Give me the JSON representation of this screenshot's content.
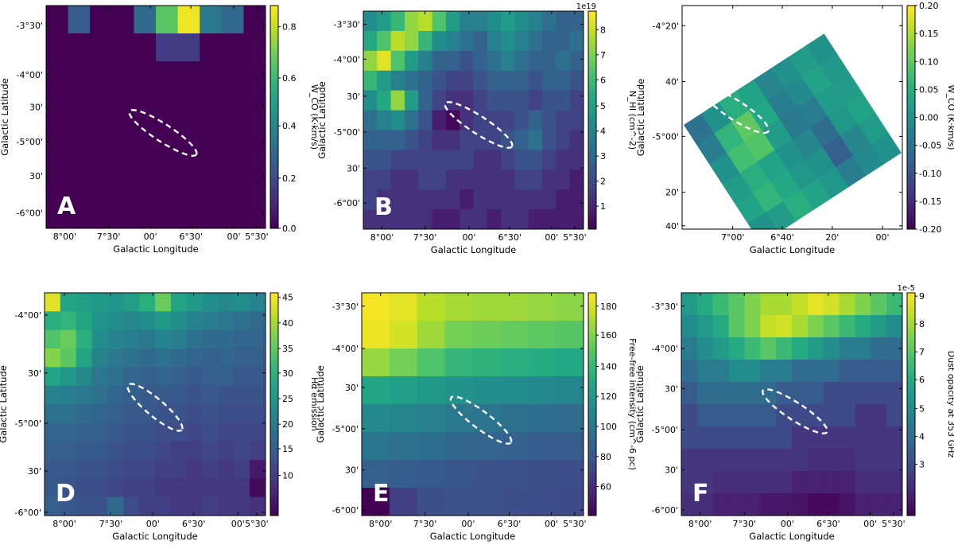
{
  "panels": [
    {
      "id": "A",
      "letter": "A",
      "x_label": "Galactic Longitude",
      "y_label": "Galactic Latitude",
      "x_ticks": [
        "8°00'",
        "7°30'",
        "00'",
        "6°30'",
        "00'",
        "5°30'"
      ],
      "y_ticks": [
        "-3°30'",
        "-4°00'",
        "30'",
        "-5°00'",
        "30'",
        "-6°00'"
      ],
      "colorbar_label": "W_CO (K·km/s)",
      "colorbar_ticks": [
        "0.8",
        "0.6",
        "0.4",
        "0.2",
        "0.0"
      ],
      "colorbar_range": [
        0,
        0.88
      ],
      "colorbar_multiplier": "",
      "colormap": "viridis"
    },
    {
      "id": "B",
      "letter": "B",
      "x_label": "Galactic Longitude",
      "y_label": "Galactic Latitude",
      "x_ticks": [
        "8°00'",
        "7°30'",
        "00'",
        "6°30'",
        "00'",
        "5°30'"
      ],
      "y_ticks": [
        "-3°30'",
        "-4°00'",
        "30'",
        "-5°00'",
        "30'",
        "-6°00'"
      ],
      "colorbar_label": "N_HI (cm^-2)",
      "colorbar_ticks": [
        "8",
        "7",
        "6",
        "5",
        "4",
        "3",
        "2",
        "1"
      ],
      "colorbar_range": [
        0.3,
        8.9
      ],
      "colorbar_multiplier": "1e19",
      "colormap": "viridis"
    },
    {
      "id": "C",
      "letter": "C",
      "x_label": "Galactic Longitude",
      "y_label": "Galactic Latitude",
      "x_ticks": [
        "7°00'",
        "6°40'",
        "20'",
        "00'"
      ],
      "y_ticks": [
        "-4°20'",
        "40'",
        "-5°00'",
        "20'",
        "40'"
      ],
      "colorbar_label": "W_CO (K·km/s)",
      "colorbar_ticks": [
        "0.20",
        "0.15",
        "0.10",
        "0.05",
        "0.00",
        "-0.05",
        "-0.10",
        "-0.15",
        "-0.20"
      ],
      "colorbar_range": [
        -0.2,
        0.2
      ],
      "colorbar_multiplier": "",
      "colormap": "viridis"
    },
    {
      "id": "D",
      "letter": "D",
      "x_label": "Galactic Longitude",
      "y_label": "Galactic Latitude",
      "x_ticks": [
        "8°00'",
        "7°30'",
        "00'",
        "6°30'",
        "00'",
        "5°30'"
      ],
      "y_ticks": [
        "-4°00'",
        "30'",
        "-5°00'",
        "30'",
        "-6°00'"
      ],
      "colorbar_label": "Hα emission",
      "colorbar_ticks": [
        "45",
        "40",
        "35",
        "30",
        "25",
        "20",
        "15",
        "10"
      ],
      "colorbar_range": [
        3,
        46
      ],
      "colorbar_multiplier": "",
      "colormap": "viridis"
    },
    {
      "id": "E",
      "letter": "E",
      "x_label": "Galactic Longitude",
      "y_label": "Galactic Latitude",
      "x_ticks": [
        "8°00'",
        "7°30'",
        "00'",
        "6°30'",
        "00'",
        "5°30'"
      ],
      "y_ticks": [
        "-3°30'",
        "-4°00'",
        "30'",
        "-5°00'",
        "30'",
        "-6°00'"
      ],
      "colorbar_label": "Free-free intensity (cm^-6 pc)",
      "colorbar_ticks": [
        "180",
        "160",
        "140",
        "120",
        "100",
        "80",
        "60"
      ],
      "colorbar_range": [
        42,
        192
      ],
      "colorbar_multiplier": "",
      "colormap": "viridis"
    },
    {
      "id": "F",
      "letter": "F",
      "x_label": "Galactic Longitude",
      "y_label": "Galactic Latitude",
      "x_ticks": [
        "8°00'",
        "7°30'",
        "00'",
        "6°30'",
        "00'",
        "5°30'"
      ],
      "y_ticks": [
        "-3°30'",
        "-4°00'",
        "30'",
        "-5°00'",
        "30'",
        "-6°00'"
      ],
      "colorbar_label": "Dust opacity at 353 GHz",
      "colorbar_ticks": [
        "9",
        "8",
        "7",
        "6",
        "5",
        "4",
        "3"
      ],
      "colorbar_range": [
        1.8,
        9.5
      ],
      "colorbar_multiplier": "1e-5",
      "colormap": "viridis"
    }
  ],
  "chart_data": [
    {
      "type": "heatmap",
      "panel": "A",
      "xlabel": "Galactic Longitude",
      "ylabel": "Galactic Latitude",
      "colorbar_label": "W_CO (K·km/s)",
      "value_range": [
        0,
        0.88
      ],
      "grid": [
        [
          0.0,
          0.25,
          0.0,
          0.0,
          0.3,
          0.65,
          0.86,
          0.35,
          0.3,
          0.0
        ],
        [
          0.0,
          0.0,
          0.0,
          0.0,
          0.0,
          0.15,
          0.15,
          0.0,
          0.0,
          0.0
        ],
        [
          0.0,
          0.0,
          0.0,
          0.0,
          0.0,
          0.0,
          0.0,
          0.0,
          0.0,
          0.0
        ],
        [
          0.0,
          0.0,
          0.0,
          0.0,
          0.0,
          0.0,
          0.0,
          0.0,
          0.0,
          0.0
        ],
        [
          0.0,
          0.0,
          0.0,
          0.0,
          0.0,
          0.0,
          0.0,
          0.0,
          0.0,
          0.0
        ],
        [
          0.0,
          0.0,
          0.0,
          0.0,
          0.0,
          0.0,
          0.0,
          0.0,
          0.0,
          0.0
        ],
        [
          0.0,
          0.0,
          0.0,
          0.0,
          0.0,
          0.0,
          0.0,
          0.0,
          0.0,
          0.0
        ],
        [
          0.0,
          0.0,
          0.0,
          0.0,
          0.0,
          0.0,
          0.0,
          0.0,
          0.0,
          0.0
        ]
      ]
    },
    {
      "type": "heatmap",
      "panel": "B",
      "xlabel": "Galactic Longitude",
      "ylabel": "Galactic Latitude",
      "colorbar_label": "N_HI (cm^-2)",
      "colorbar_multiplier": "1e19",
      "value_range": [
        0.3,
        8.9
      ],
      "grid": [
        [
          4.5,
          5.0,
          6.0,
          7.5,
          8.0,
          6.5,
          5.0,
          4.0,
          4.0,
          4.5,
          5.0,
          4.5,
          4.0,
          3.5,
          3.0,
          3.0
        ],
        [
          5.5,
          6.5,
          8.0,
          7.5,
          6.0,
          4.5,
          4.0,
          3.5,
          3.0,
          4.0,
          4.5,
          4.0,
          3.5,
          3.0,
          3.0,
          3.5
        ],
        [
          7.5,
          8.5,
          6.5,
          5.0,
          4.0,
          3.0,
          3.0,
          2.5,
          3.0,
          3.5,
          4.0,
          3.5,
          3.0,
          3.0,
          3.5,
          3.0
        ],
        [
          6.0,
          5.0,
          4.0,
          3.5,
          3.0,
          2.5,
          2.0,
          2.0,
          2.5,
          3.0,
          3.0,
          3.0,
          2.5,
          3.0,
          3.0,
          2.5
        ],
        [
          4.5,
          5.5,
          7.5,
          5.0,
          3.0,
          2.0,
          1.5,
          1.5,
          2.0,
          2.5,
          2.5,
          2.5,
          2.0,
          2.5,
          2.5,
          2.0
        ],
        [
          3.5,
          4.0,
          4.5,
          3.5,
          2.5,
          1.0,
          0.5,
          1.5,
          2.0,
          2.0,
          2.0,
          2.5,
          3.0,
          2.5,
          2.0,
          2.0
        ],
        [
          3.0,
          3.0,
          3.0,
          2.5,
          2.0,
          1.5,
          1.5,
          2.0,
          2.0,
          2.0,
          2.5,
          3.0,
          3.5,
          2.5,
          2.0,
          1.5
        ],
        [
          2.5,
          2.5,
          2.0,
          2.0,
          2.0,
          2.0,
          2.0,
          2.0,
          1.5,
          1.5,
          2.0,
          2.5,
          2.5,
          2.0,
          1.5,
          1.5
        ],
        [
          2.0,
          2.0,
          1.5,
          1.5,
          2.0,
          2.0,
          1.5,
          1.5,
          1.5,
          1.5,
          1.5,
          2.0,
          2.0,
          1.5,
          1.5,
          1.0
        ],
        [
          2.0,
          1.5,
          1.5,
          1.5,
          1.5,
          1.5,
          1.5,
          1.0,
          1.5,
          1.5,
          1.5,
          1.5,
          1.5,
          1.5,
          1.0,
          1.0
        ],
        [
          1.5,
          1.5,
          1.5,
          1.5,
          1.5,
          1.0,
          1.0,
          1.5,
          1.5,
          1.0,
          1.5,
          1.5,
          1.0,
          1.0,
          1.0,
          1.0
        ]
      ]
    },
    {
      "type": "heatmap",
      "panel": "C",
      "xlabel": "Galactic Longitude",
      "ylabel": "Galactic Latitude",
      "colorbar_label": "W_CO (K·km/s)",
      "value_range": [
        -0.2,
        0.2
      ],
      "note_values": "rotated rectangular footprint; values mostly between -0.10 and 0.10",
      "grid": [
        [
          -0.05,
          0.0,
          0.05,
          0.03,
          -0.02,
          0.0,
          0.02,
          0.0
        ],
        [
          -0.03,
          0.06,
          0.1,
          0.04,
          -0.03,
          -0.01,
          0.03,
          0.01
        ],
        [
          0.0,
          0.08,
          0.09,
          0.02,
          -0.04,
          -0.03,
          0.02,
          0.02
        ],
        [
          0.02,
          0.05,
          0.03,
          0.0,
          -0.02,
          -0.06,
          0.01,
          0.03
        ],
        [
          0.03,
          0.06,
          0.04,
          0.01,
          0.0,
          -0.08,
          -0.02,
          0.02
        ],
        [
          0.0,
          0.02,
          0.05,
          0.03,
          0.01,
          -0.03,
          -0.01,
          0.0
        ]
      ]
    },
    {
      "type": "heatmap",
      "panel": "D",
      "xlabel": "Galactic Longitude",
      "ylabel": "Galactic Latitude",
      "colorbar_label": "Hα emission",
      "value_range": [
        3,
        46
      ],
      "grid": [
        [
          44,
          28,
          27,
          26,
          25,
          27,
          30,
          36,
          28,
          26,
          24,
          23,
          24,
          22
        ],
        [
          30,
          31,
          28,
          25,
          24,
          23,
          24,
          26,
          24,
          22,
          21,
          20,
          19,
          18
        ],
        [
          34,
          36,
          30,
          24,
          22,
          21,
          20,
          22,
          21,
          19,
          18,
          18,
          17,
          17
        ],
        [
          38,
          35,
          28,
          22,
          20,
          19,
          18,
          19,
          18,
          17,
          16,
          17,
          16,
          16
        ],
        [
          28,
          26,
          23,
          20,
          19,
          17,
          16,
          17,
          16,
          15,
          16,
          16,
          15,
          15
        ],
        [
          22,
          21,
          20,
          19,
          17,
          16,
          15,
          15,
          15,
          14,
          15,
          14,
          14,
          14
        ],
        [
          19,
          19,
          18,
          17,
          16,
          15,
          15,
          14,
          14,
          13,
          14,
          13,
          13,
          13
        ],
        [
          17,
          17,
          16,
          16,
          15,
          14,
          14,
          13,
          13,
          12,
          13,
          12,
          12,
          12
        ],
        [
          16,
          16,
          15,
          15,
          14,
          13,
          13,
          12,
          11,
          11,
          12,
          11,
          12,
          11
        ],
        [
          15,
          15,
          14,
          14,
          13,
          12,
          12,
          11,
          11,
          10,
          11,
          10,
          11,
          6
        ],
        [
          15,
          14,
          13,
          13,
          12,
          11,
          11,
          10,
          10,
          10,
          10,
          10,
          10,
          4
        ],
        [
          16,
          15,
          14,
          14,
          18,
          13,
          11,
          11,
          10,
          10,
          11,
          10,
          10,
          9
        ]
      ]
    },
    {
      "type": "heatmap",
      "panel": "E",
      "xlabel": "Galactic Longitude",
      "ylabel": "Galactic Latitude",
      "colorbar_label": "Free-free intensity (cm^-6 pc)",
      "value_range": [
        42,
        192
      ],
      "grid": [
        [
          190,
          186,
          176,
          172,
          170,
          170,
          168,
          166
        ],
        [
          188,
          182,
          170,
          160,
          158,
          156,
          154,
          152
        ],
        [
          168,
          160,
          150,
          140,
          138,
          136,
          134,
          132
        ],
        [
          130,
          126,
          122,
          118,
          116,
          114,
          112,
          110
        ],
        [
          112,
          110,
          106,
          102,
          100,
          98,
          96,
          95
        ],
        [
          100,
          98,
          96,
          92,
          90,
          88,
          86,
          85
        ],
        [
          88,
          86,
          84,
          82,
          80,
          79,
          78,
          77
        ],
        [
          42,
          70,
          78,
          80,
          79,
          78,
          77,
          76
        ]
      ]
    },
    {
      "type": "heatmap",
      "panel": "F",
      "xlabel": "Galactic Longitude",
      "ylabel": "Galactic Latitude",
      "colorbar_label": "Dust opacity at 353 GHz",
      "colorbar_multiplier": "1e-5",
      "value_range": [
        1.8,
        9.5
      ],
      "grid": [
        [
          6.0,
          6.5,
          7.0,
          7.5,
          8.0,
          8.5,
          8.5,
          8.8,
          9.2,
          9.0,
          8.5,
          8.0,
          7.5,
          7.0
        ],
        [
          5.5,
          6.0,
          6.5,
          7.5,
          8.0,
          8.8,
          9.0,
          8.5,
          8.0,
          7.5,
          7.0,
          6.5,
          6.0,
          5.5
        ],
        [
          5.0,
          5.5,
          6.0,
          6.5,
          7.0,
          7.5,
          7.0,
          6.5,
          6.0,
          5.5,
          5.0,
          5.0,
          4.5,
          4.5
        ],
        [
          4.5,
          5.0,
          5.0,
          5.5,
          5.5,
          5.0,
          5.0,
          4.5,
          4.5,
          4.5,
          4.0,
          4.0,
          4.0,
          4.0
        ],
        [
          4.0,
          4.5,
          4.5,
          4.5,
          4.5,
          4.5,
          4.0,
          4.0,
          4.0,
          3.5,
          3.5,
          3.5,
          3.5,
          3.5
        ],
        [
          3.5,
          4.0,
          4.0,
          4.0,
          4.0,
          4.0,
          3.5,
          3.5,
          3.5,
          3.5,
          3.5,
          3.0,
          3.0,
          3.5
        ],
        [
          3.5,
          3.5,
          3.5,
          3.5,
          3.5,
          3.5,
          3.5,
          3.0,
          3.0,
          3.0,
          3.0,
          3.0,
          3.0,
          3.0
        ],
        [
          3.0,
          3.0,
          3.0,
          3.0,
          3.0,
          3.0,
          3.0,
          3.0,
          2.8,
          2.8,
          2.8,
          3.0,
          3.0,
          3.0
        ],
        [
          3.0,
          3.0,
          2.8,
          2.8,
          2.8,
          2.8,
          2.8,
          2.5,
          2.5,
          2.5,
          2.5,
          2.8,
          2.8,
          2.8
        ],
        [
          2.8,
          2.8,
          2.5,
          2.5,
          2.5,
          2.3,
          2.3,
          2.2,
          2.0,
          2.0,
          2.2,
          2.5,
          2.5,
          2.5
        ]
      ]
    }
  ]
}
